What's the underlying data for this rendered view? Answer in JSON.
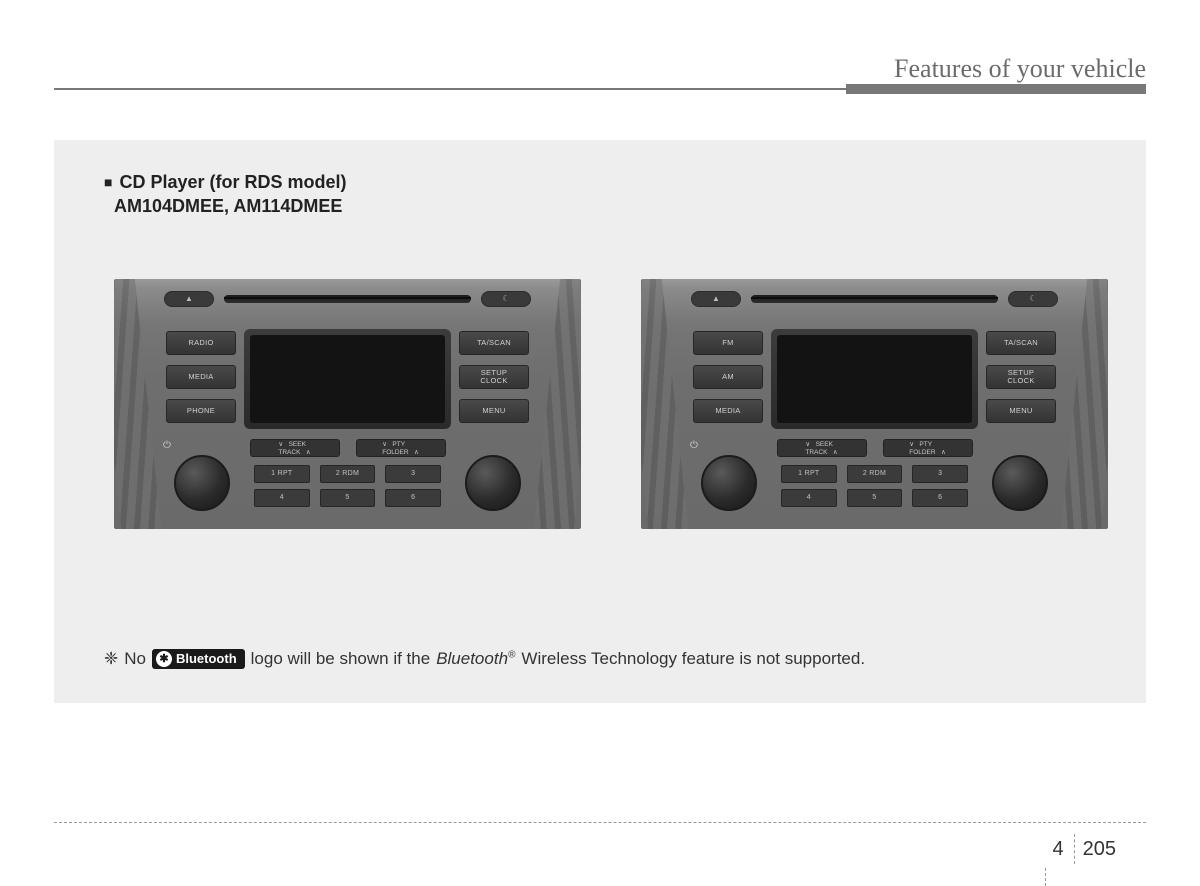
{
  "header": {
    "title": "Features of your vehicle"
  },
  "section": {
    "marker": "■",
    "title_line1": "CD Player (for RDS model)",
    "title_line2": "AM104DMEE, AM114DMEE"
  },
  "radio_left": {
    "eject": "▲",
    "moon": "☾",
    "left_buttons": [
      "RADIO",
      "MEDIA",
      "PHONE"
    ],
    "right_buttons": [
      "TA/SCAN",
      "SETUP\nCLOCK",
      "MENU"
    ],
    "seek": "∨   SEEK\nTRACK   ∧",
    "pty": "∨   PTY\nFOLDER   ∧",
    "presets": [
      "1  RPT",
      "2  RDM",
      "3",
      "4",
      "5",
      "6"
    ],
    "power": "⏻"
  },
  "radio_right": {
    "eject": "▲",
    "moon": "☾",
    "left_buttons": [
      "FM",
      "AM",
      "MEDIA"
    ],
    "right_buttons": [
      "TA/SCAN",
      "SETUP\nCLOCK",
      "MENU"
    ],
    "seek": "∨   SEEK\nTRACK   ∧",
    "pty": "∨   PTY\nFOLDER   ∧",
    "presets": [
      "1  RPT",
      "2  RDM",
      "3",
      "4",
      "5",
      "6"
    ],
    "power": "⏻"
  },
  "note": {
    "asterisk": "❈",
    "pre": "No",
    "bt_icon": "✱",
    "bt_word": "Bluetooth",
    "mid": "logo will be shown if the",
    "ital": "Bluetooth",
    "reg": "®",
    "post": "Wireless Technology feature is not supported."
  },
  "footer": {
    "section": "4",
    "page": "205"
  }
}
